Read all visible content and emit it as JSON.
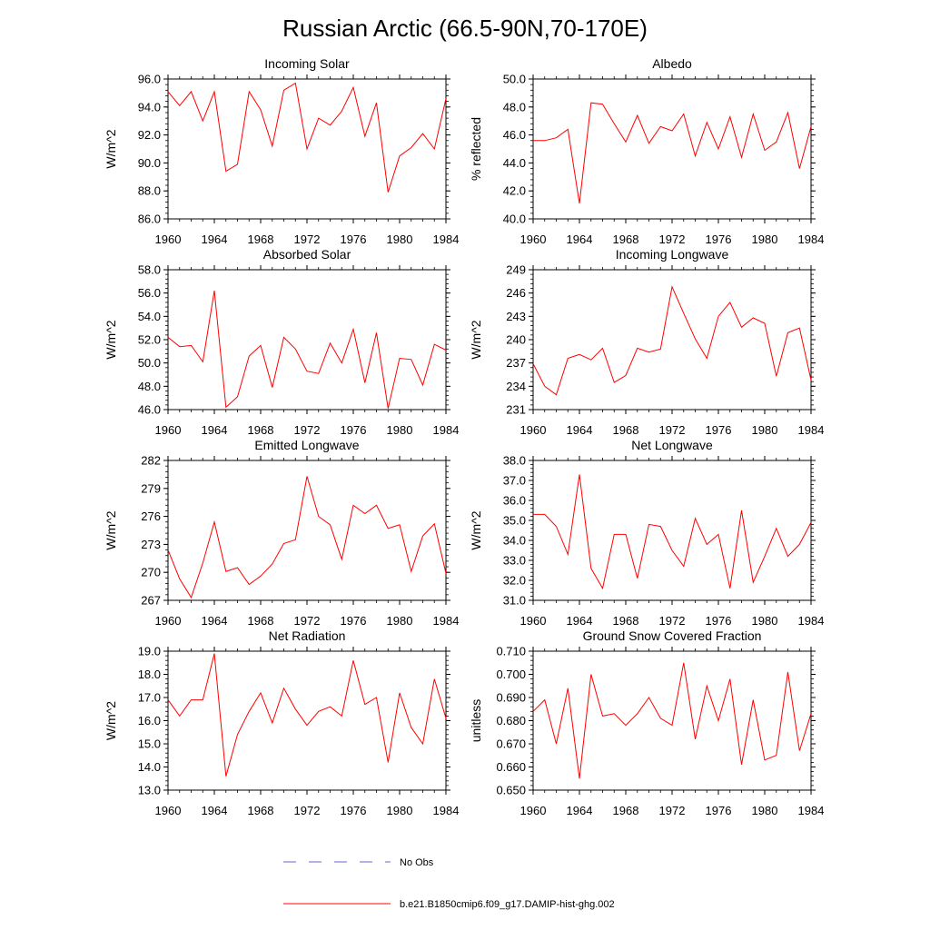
{
  "title": "Russian Arctic (66.5-90N,70-170E)",
  "legend": [
    {
      "label": "No Obs",
      "color": "#6666cc",
      "dash": true
    },
    {
      "label": "b.e21.B1850cmip6.f09_g17.DAMIP-hist-ghg.002",
      "color": "#ff0000",
      "dash": false
    }
  ],
  "chart_data": [
    {
      "type": "line",
      "title": "Incoming Solar",
      "ylabel": "W/m^2",
      "xlim": [
        1960,
        1984
      ],
      "ylim": [
        86,
        96
      ],
      "xticks": [
        1960,
        1964,
        1968,
        1972,
        1976,
        1980,
        1984
      ],
      "yticks": [
        "86.0",
        "88.0",
        "90.0",
        "92.0",
        "94.0",
        "96.0"
      ],
      "x": [
        1960,
        1961,
        1962,
        1963,
        1964,
        1965,
        1966,
        1967,
        1968,
        1969,
        1970,
        1971,
        1972,
        1973,
        1974,
        1975,
        1976,
        1977,
        1978,
        1979,
        1980,
        1981,
        1982,
        1983,
        1984
      ],
      "series": [
        {
          "name": "b.e21.B1850cmip6.f09_g17.DAMIP-hist-ghg.002",
          "color": "#ff0000",
          "values": [
            95.1,
            94.1,
            95.1,
            93.0,
            95.1,
            89.4,
            89.9,
            95.1,
            93.8,
            91.2,
            95.2,
            95.7,
            91.0,
            93.2,
            92.7,
            93.7,
            95.4,
            91.9,
            94.3,
            87.9,
            90.5,
            91.1,
            92.1,
            91.0,
            94.6
          ]
        }
      ]
    },
    {
      "type": "line",
      "title": "Albedo",
      "ylabel": "% reflected",
      "xlim": [
        1960,
        1984
      ],
      "ylim": [
        40,
        50
      ],
      "xticks": [
        1960,
        1964,
        1968,
        1972,
        1976,
        1980,
        1984
      ],
      "yticks": [
        "40.0",
        "42.0",
        "44.0",
        "46.0",
        "48.0",
        "50.0"
      ],
      "x": [
        1960,
        1961,
        1962,
        1963,
        1964,
        1965,
        1966,
        1967,
        1968,
        1969,
        1970,
        1971,
        1972,
        1973,
        1974,
        1975,
        1976,
        1977,
        1978,
        1979,
        1980,
        1981,
        1982,
        1983,
        1984
      ],
      "series": [
        {
          "name": "b.e21.B1850cmip6.f09_g17.DAMIP-hist-ghg.002",
          "color": "#ff0000",
          "values": [
            45.6,
            45.6,
            45.8,
            46.4,
            41.1,
            48.3,
            48.2,
            46.8,
            45.5,
            47.4,
            45.4,
            46.6,
            46.3,
            47.5,
            44.5,
            46.9,
            45.0,
            47.3,
            44.4,
            47.5,
            44.9,
            45.5,
            47.6,
            43.6,
            46.6
          ]
        }
      ]
    },
    {
      "type": "line",
      "title": "Absorbed Solar",
      "ylabel": "W/m^2",
      "xlim": [
        1960,
        1984
      ],
      "ylim": [
        46,
        58
      ],
      "xticks": [
        1960,
        1964,
        1968,
        1972,
        1976,
        1980,
        1984
      ],
      "yticks": [
        "46.0",
        "48.0",
        "50.0",
        "52.0",
        "54.0",
        "56.0",
        "58.0"
      ],
      "x": [
        1960,
        1961,
        1962,
        1963,
        1964,
        1965,
        1966,
        1967,
        1968,
        1969,
        1970,
        1971,
        1972,
        1973,
        1974,
        1975,
        1976,
        1977,
        1978,
        1979,
        1980,
        1981,
        1982,
        1983,
        1984
      ],
      "series": [
        {
          "name": "b.e21.B1850cmip6.f09_g17.DAMIP-hist-ghg.002",
          "color": "#ff0000",
          "values": [
            52.2,
            51.4,
            51.5,
            50.1,
            56.2,
            46.2,
            47.1,
            50.6,
            51.5,
            47.9,
            52.2,
            51.2,
            49.3,
            49.1,
            51.7,
            50.0,
            52.9,
            48.3,
            52.6,
            46.1,
            50.4,
            50.3,
            48.1,
            51.6,
            51.1
          ]
        }
      ]
    },
    {
      "type": "line",
      "title": "Incoming Longwave",
      "ylabel": "W/m^2",
      "xlim": [
        1960,
        1984
      ],
      "ylim": [
        231,
        249
      ],
      "xticks": [
        1960,
        1964,
        1968,
        1972,
        1976,
        1980,
        1984
      ],
      "yticks": [
        "231",
        "234",
        "237",
        "240",
        "243",
        "246",
        "249"
      ],
      "x": [
        1960,
        1961,
        1962,
        1963,
        1964,
        1965,
        1966,
        1967,
        1968,
        1969,
        1970,
        1971,
        1972,
        1973,
        1974,
        1975,
        1976,
        1977,
        1978,
        1979,
        1980,
        1981,
        1982,
        1983,
        1984
      ],
      "series": [
        {
          "name": "b.e21.B1850cmip6.f09_g17.DAMIP-hist-ghg.002",
          "color": "#ff0000",
          "values": [
            236.9,
            234.0,
            232.9,
            237.6,
            238.1,
            237.4,
            238.9,
            234.5,
            235.4,
            238.9,
            238.4,
            238.8,
            246.8,
            243.4,
            240.1,
            237.6,
            243.0,
            244.8,
            241.6,
            242.8,
            242.1,
            235.3,
            240.9,
            241.5,
            234.8
          ]
        }
      ]
    },
    {
      "type": "line",
      "title": "Emitted Longwave",
      "ylabel": "W/m^2",
      "xlim": [
        1960,
        1984
      ],
      "ylim": [
        267,
        282
      ],
      "xticks": [
        1960,
        1964,
        1968,
        1972,
        1976,
        1980,
        1984
      ],
      "yticks": [
        "267",
        "270",
        "273",
        "276",
        "279",
        "282"
      ],
      "x": [
        1960,
        1961,
        1962,
        1963,
        1964,
        1965,
        1966,
        1967,
        1968,
        1969,
        1970,
        1971,
        1972,
        1973,
        1974,
        1975,
        1976,
        1977,
        1978,
        1979,
        1980,
        1981,
        1982,
        1983,
        1984
      ],
      "series": [
        {
          "name": "b.e21.B1850cmip6.f09_g17.DAMIP-hist-ghg.002",
          "color": "#ff0000",
          "values": [
            272.4,
            269.3,
            267.3,
            271.0,
            275.4,
            270.1,
            270.5,
            268.7,
            269.6,
            270.9,
            273.1,
            273.5,
            280.3,
            276.0,
            275.1,
            271.4,
            277.2,
            276.3,
            277.2,
            274.7,
            275.1,
            270.1,
            273.9,
            275.2,
            269.9
          ]
        }
      ]
    },
    {
      "type": "line",
      "title": "Net Longwave",
      "ylabel": "W/m^2",
      "xlim": [
        1960,
        1984
      ],
      "ylim": [
        31,
        38
      ],
      "xticks": [
        1960,
        1964,
        1968,
        1972,
        1976,
        1980,
        1984
      ],
      "yticks": [
        "31.0",
        "32.0",
        "33.0",
        "34.0",
        "35.0",
        "36.0",
        "37.0",
        "38.0"
      ],
      "x": [
        1960,
        1961,
        1962,
        1963,
        1964,
        1965,
        1966,
        1967,
        1968,
        1969,
        1970,
        1971,
        1972,
        1973,
        1974,
        1975,
        1976,
        1977,
        1978,
        1979,
        1980,
        1981,
        1982,
        1983,
        1984
      ],
      "series": [
        {
          "name": "b.e21.B1850cmip6.f09_g17.DAMIP-hist-ghg.002",
          "color": "#ff0000",
          "values": [
            35.3,
            35.3,
            34.7,
            33.3,
            37.3,
            32.6,
            31.6,
            34.3,
            34.3,
            32.1,
            34.8,
            34.7,
            33.5,
            32.7,
            35.1,
            33.8,
            34.3,
            31.6,
            35.5,
            31.9,
            33.2,
            34.6,
            33.2,
            33.8,
            34.9
          ]
        }
      ]
    },
    {
      "type": "line",
      "title": "Net Radiation",
      "ylabel": "W/m^2",
      "xlim": [
        1960,
        1984
      ],
      "ylim": [
        13,
        19
      ],
      "xticks": [
        1960,
        1964,
        1968,
        1972,
        1976,
        1980,
        1984
      ],
      "yticks": [
        "13.0",
        "14.0",
        "15.0",
        "16.0",
        "17.0",
        "18.0",
        "19.0"
      ],
      "x": [
        1960,
        1961,
        1962,
        1963,
        1964,
        1965,
        1966,
        1967,
        1968,
        1969,
        1970,
        1971,
        1972,
        1973,
        1974,
        1975,
        1976,
        1977,
        1978,
        1979,
        1980,
        1981,
        1982,
        1983,
        1984
      ],
      "series": [
        {
          "name": "b.e21.B1850cmip6.f09_g17.DAMIP-hist-ghg.002",
          "color": "#ff0000",
          "values": [
            16.9,
            16.2,
            16.9,
            16.9,
            18.9,
            13.6,
            15.4,
            16.4,
            17.2,
            15.9,
            17.4,
            16.5,
            15.8,
            16.4,
            16.6,
            16.2,
            18.6,
            16.7,
            17.0,
            14.2,
            17.2,
            15.7,
            15.0,
            17.8,
            16.1
          ]
        }
      ]
    },
    {
      "type": "line",
      "title": "Ground Snow Covered Fraction",
      "ylabel": "unitless",
      "xlim": [
        1960,
        1984
      ],
      "ylim": [
        0.65,
        0.71
      ],
      "xticks": [
        1960,
        1964,
        1968,
        1972,
        1976,
        1980,
        1984
      ],
      "yticks": [
        "0.650",
        "0.660",
        "0.670",
        "0.680",
        "0.690",
        "0.700",
        "0.710"
      ],
      "x": [
        1960,
        1961,
        1962,
        1963,
        1964,
        1965,
        1966,
        1967,
        1968,
        1969,
        1970,
        1971,
        1972,
        1973,
        1974,
        1975,
        1976,
        1977,
        1978,
        1979,
        1980,
        1981,
        1982,
        1983,
        1984
      ],
      "series": [
        {
          "name": "b.e21.B1850cmip6.f09_g17.DAMIP-hist-ghg.002",
          "color": "#ff0000",
          "values": [
            0.684,
            0.689,
            0.67,
            0.694,
            0.655,
            0.7,
            0.682,
            0.683,
            0.678,
            0.683,
            0.69,
            0.681,
            0.678,
            0.705,
            0.672,
            0.695,
            0.68,
            0.698,
            0.661,
            0.689,
            0.663,
            0.665,
            0.701,
            0.667,
            0.683
          ]
        }
      ]
    }
  ]
}
